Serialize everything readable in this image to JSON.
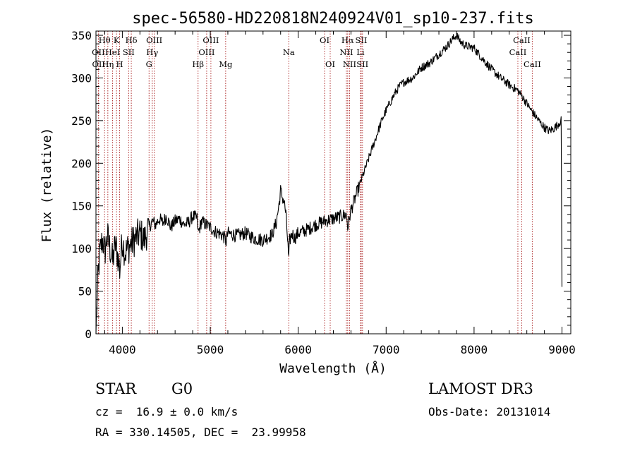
{
  "chart_data": {
    "type": "line",
    "title": "spec-56580-HD220818N240924V01_sp10-237.fits",
    "xlabel": "Wavelength (Å)",
    "ylabel": "Flux (relative)",
    "xlim": [
      3700,
      9100
    ],
    "ylim": [
      0,
      355
    ],
    "x_ticks": [
      4000,
      5000,
      6000,
      7000,
      8000,
      9000
    ],
    "y_ticks": [
      0,
      50,
      100,
      150,
      200,
      250,
      300,
      350
    ],
    "grid": false,
    "line_color": "#000000",
    "marker_color": "#b03030",
    "series": [
      {
        "x": [
          3700,
          3720,
          3740,
          3760,
          3780,
          3800,
          3830,
          3860,
          3890,
          3920,
          3950,
          3970,
          4000,
          4030,
          4060,
          4100,
          4150,
          4200,
          4250,
          4300,
          4340,
          4380,
          4420,
          4460,
          4500,
          4550,
          4600,
          4650,
          4700,
          4750,
          4800,
          4850,
          4861,
          4900,
          4950,
          5000,
          5050,
          5100,
          5150,
          5180,
          5200,
          5300,
          5400,
          5500,
          5600,
          5700,
          5750,
          5780,
          5800,
          5820,
          5840,
          5860,
          5880,
          5893,
          5900,
          5930,
          5960,
          6000,
          6100,
          6200,
          6300,
          6400,
          6500,
          6550,
          6563,
          6600,
          6650,
          6700,
          6750,
          6800,
          6850,
          6900,
          6950,
          7000,
          7050,
          7100,
          7150,
          7200,
          7300,
          7400,
          7500,
          7600,
          7700,
          7750,
          7800,
          7850,
          7900,
          8000,
          8100,
          8200,
          8300,
          8400,
          8500,
          8550,
          8600,
          8650,
          8700,
          8750,
          8800,
          8850,
          8900,
          8950,
          8990,
          9000
        ],
        "y": [
          0,
          60,
          90,
          105,
          110,
          95,
          115,
          100,
          85,
          105,
          90,
          75,
          110,
          95,
          100,
          105,
          112,
          118,
          110,
          125,
          132,
          128,
          135,
          130,
          138,
          125,
          132,
          135,
          128,
          130,
          138,
          135,
          118,
          132,
          128,
          125,
          120,
          118,
          115,
          108,
          118,
          115,
          118,
          112,
          110,
          116,
          130,
          150,
          168,
          160,
          155,
          140,
          110,
          85,
          108,
          118,
          112,
          118,
          122,
          128,
          132,
          135,
          138,
          140,
          125,
          145,
          160,
          175,
          190,
          205,
          220,
          235,
          250,
          262,
          272,
          282,
          290,
          295,
          300,
          312,
          318,
          328,
          338,
          345,
          350,
          342,
          338,
          335,
          322,
          310,
          300,
          292,
          285,
          278,
          270,
          262,
          255,
          248,
          242,
          238,
          240,
          245,
          250,
          55
        ]
      }
    ],
    "lines": [
      {
        "label": "Hθ",
        "x": 3798,
        "row": 0
      },
      {
        "label": "OII",
        "x": 3727,
        "row": 1
      },
      {
        "label": "OII",
        "x": 3730,
        "row": 2
      },
      {
        "label": "K",
        "x": 3934,
        "row": 0
      },
      {
        "label": "HeI",
        "x": 3889,
        "row": 1
      },
      {
        "label": "Hη",
        "x": 3835,
        "row": 2
      },
      {
        "label": "SII",
        "x": 4072,
        "row": 1
      },
      {
        "label": "H",
        "x": 3969,
        "row": 2
      },
      {
        "label": "Hδ",
        "x": 4102,
        "row": 0
      },
      {
        "label": "OIII",
        "x": 4363,
        "row": 0
      },
      {
        "label": "Hγ",
        "x": 4340,
        "row": 1
      },
      {
        "label": "G",
        "x": 4304,
        "row": 2
      },
      {
        "label": "OIII",
        "x": 5007,
        "row": 0
      },
      {
        "label": "OIII",
        "x": 4959,
        "row": 1
      },
      {
        "label": "Hβ",
        "x": 4861,
        "row": 2
      },
      {
        "label": "Mg",
        "x": 5175,
        "row": 2
      },
      {
        "label": "Na",
        "x": 5893,
        "row": 1
      },
      {
        "label": "OI",
        "x": 6300,
        "row": 0
      },
      {
        "label": "OI",
        "x": 6364,
        "row": 2
      },
      {
        "label": "Hα",
        "x": 6563,
        "row": 0
      },
      {
        "label": "NII",
        "x": 6548,
        "row": 1
      },
      {
        "label": "NII",
        "x": 6584,
        "row": 2
      },
      {
        "label": "SII",
        "x": 6717,
        "row": 0
      },
      {
        "label": "Li",
        "x": 6708,
        "row": 1
      },
      {
        "label": "SII",
        "x": 6731,
        "row": 2
      },
      {
        "label": "CaII",
        "x": 8542,
        "row": 0
      },
      {
        "label": "CaII",
        "x": 8498,
        "row": 1
      },
      {
        "label": "CaII",
        "x": 8662,
        "row": 2
      }
    ]
  },
  "info": {
    "object_class": "STAR",
    "subclass": "G0",
    "survey": "LAMOST DR3",
    "redshift": "cz =  16.9 ± 0.0 km/s",
    "obs_date": "Obs-Date: 20131014",
    "coords": "RA = 330.14505, DEC =  23.99958"
  }
}
